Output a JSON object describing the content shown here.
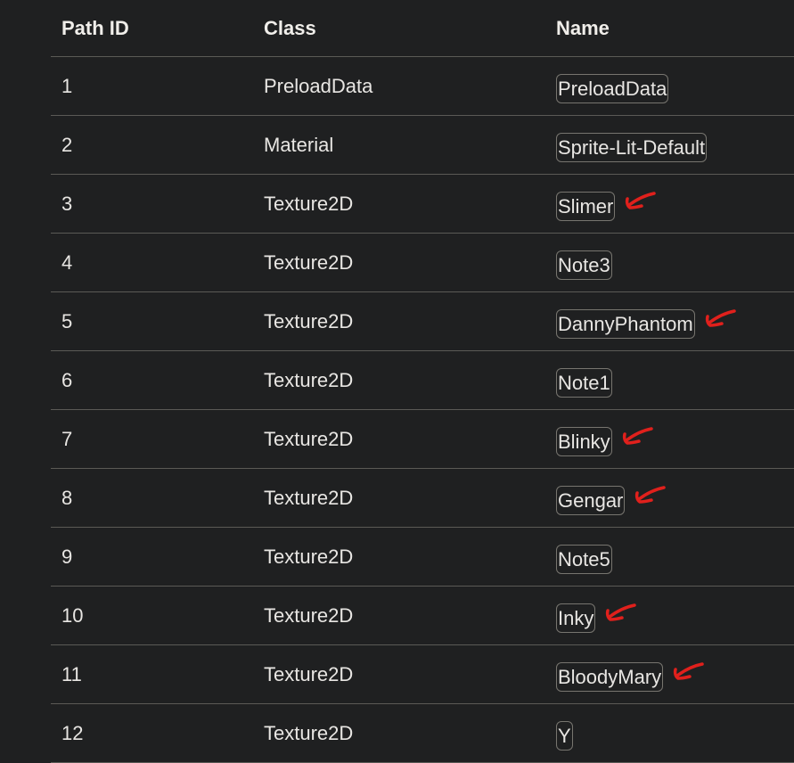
{
  "table": {
    "headers": [
      "Path ID",
      "Class",
      "Name"
    ],
    "rows": [
      {
        "id": "1",
        "class": "PreloadData",
        "name": "PreloadData",
        "marked": false
      },
      {
        "id": "2",
        "class": "Material",
        "name": "Sprite-Lit-Default",
        "marked": false
      },
      {
        "id": "3",
        "class": "Texture2D",
        "name": "Slimer",
        "marked": true
      },
      {
        "id": "4",
        "class": "Texture2D",
        "name": "Note3",
        "marked": false
      },
      {
        "id": "5",
        "class": "Texture2D",
        "name": "DannyPhantom",
        "marked": true
      },
      {
        "id": "6",
        "class": "Texture2D",
        "name": "Note1",
        "marked": false
      },
      {
        "id": "7",
        "class": "Texture2D",
        "name": "Blinky",
        "marked": true
      },
      {
        "id": "8",
        "class": "Texture2D",
        "name": "Gengar",
        "marked": true
      },
      {
        "id": "9",
        "class": "Texture2D",
        "name": "Note5",
        "marked": false
      },
      {
        "id": "10",
        "class": "Texture2D",
        "name": "Inky",
        "marked": true
      },
      {
        "id": "11",
        "class": "Texture2D",
        "name": "BloodyMary",
        "marked": true
      },
      {
        "id": "12",
        "class": "Texture2D",
        "name": "Y",
        "marked": false
      }
    ]
  },
  "colors": {
    "background": "#1f2021",
    "annotation": "#e0201c",
    "border": "#77756f"
  }
}
